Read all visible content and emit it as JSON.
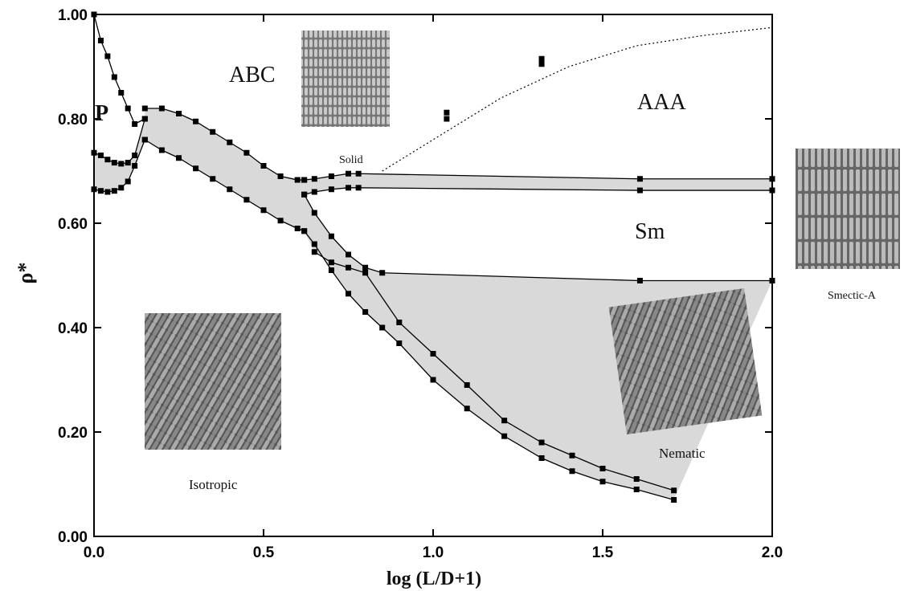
{
  "chart_data": {
    "type": "line",
    "x_label": "log (L/D+1)",
    "y_label": "ρ*",
    "xlim": [
      0,
      2.0
    ],
    "ylim": [
      0,
      1.0
    ],
    "xticks": [
      {
        "value": 0,
        "label": "0.0"
      },
      {
        "value": 0.5,
        "label": "0.5"
      },
      {
        "value": 1.0,
        "label": "1.0"
      },
      {
        "value": 1.5,
        "label": "1.5"
      },
      {
        "value": 2.0,
        "label": "2.0"
      }
    ],
    "yticks": [
      {
        "value": 0,
        "label": "0.00"
      },
      {
        "value": 0.2,
        "label": "0.20"
      },
      {
        "value": 0.4,
        "label": "0.40"
      },
      {
        "value": 0.6,
        "label": "0.60"
      },
      {
        "value": 0.8,
        "label": "0.80"
      },
      {
        "value": 1.0,
        "label": "1.00"
      }
    ],
    "annotations": [
      "P",
      "ABC",
      "AAA",
      "Sm",
      "Solid",
      "Isotropic",
      "Nematic",
      "Smectic-A"
    ],
    "color": "#000000",
    "shade_color": "#d9d9d9",
    "shaded_between": [
      [
        0,
        1
      ],
      [
        3,
        4
      ],
      [
        5,
        6
      ],
      [
        7,
        8
      ],
      [
        8,
        9
      ]
    ],
    "series": [
      {
        "style": "line+markers",
        "x": [
          0,
          0.02,
          0.04,
          0.06,
          0.08,
          0.1,
          0.12,
          0.15
        ],
        "values": [
          0.665,
          0.662,
          0.66,
          0.662,
          0.668,
          0.68,
          0.71,
          0.76
        ]
      },
      {
        "style": "line+markers",
        "x": [
          0,
          0.02,
          0.04,
          0.06,
          0.08,
          0.1,
          0.12,
          0.15
        ],
        "values": [
          0.735,
          0.73,
          0.722,
          0.716,
          0.714,
          0.716,
          0.73,
          0.8
        ]
      },
      {
        "style": "line+markers",
        "x": [
          0,
          0.02,
          0.04,
          0.06,
          0.08,
          0.1,
          0.12,
          0.15
        ],
        "values": [
          1.0,
          0.95,
          0.92,
          0.88,
          0.85,
          0.82,
          0.79,
          0.8
        ]
      },
      {
        "style": "line+markers",
        "x": [
          0.15,
          0.2,
          0.25,
          0.3,
          0.35,
          0.4,
          0.45,
          0.5,
          0.55,
          0.6,
          0.62
        ],
        "values": [
          0.82,
          0.82,
          0.81,
          0.795,
          0.775,
          0.755,
          0.735,
          0.71,
          0.69,
          0.683,
          0.683
        ]
      },
      {
        "style": "line+markers",
        "x": [
          0.15,
          0.2,
          0.25,
          0.3,
          0.35,
          0.4,
          0.45,
          0.5,
          0.55,
          0.6,
          0.62
        ],
        "values": [
          0.76,
          0.74,
          0.725,
          0.705,
          0.685,
          0.665,
          0.645,
          0.625,
          0.605,
          0.59,
          0.585
        ]
      },
      {
        "style": "line+markers",
        "x": [
          0.62,
          0.65,
          0.7,
          0.75,
          0.78,
          1.61,
          2.0
        ],
        "values": [
          0.683,
          0.685,
          0.69,
          0.695,
          0.695,
          0.685,
          0.685
        ]
      },
      {
        "style": "line+markers",
        "x": [
          0.62,
          0.65,
          0.7,
          0.75,
          0.78,
          1.61,
          2.0
        ],
        "values": [
          0.655,
          0.66,
          0.665,
          0.668,
          0.668,
          0.663,
          0.663
        ]
      },
      {
        "style": "line+markers",
        "x": [
          0.62,
          0.65,
          0.7,
          0.75,
          0.8,
          0.85,
          1.61,
          2.0
        ],
        "values": [
          0.655,
          0.62,
          0.575,
          0.54,
          0.515,
          0.505,
          0.49,
          0.49
        ]
      },
      {
        "style": "line+markers",
        "x": [
          0.62,
          0.65,
          0.7,
          0.75,
          0.8,
          0.85,
          0.9,
          1.0,
          1.1,
          1.21,
          1.32,
          1.41,
          1.5,
          1.6,
          1.71
        ],
        "values": [
          0.585,
          0.56,
          0.51,
          0.465,
          0.43,
          0.4,
          0.37,
          0.3,
          0.245,
          0.192,
          0.15,
          0.125,
          0.105,
          0.09,
          0.07
        ]
      },
      {
        "style": "line+markers",
        "x": [
          0.65,
          0.7,
          0.75,
          0.8,
          0.9,
          1.0,
          1.1,
          1.21,
          1.32,
          1.41,
          1.5,
          1.6,
          1.71
        ],
        "values": [
          0.545,
          0.525,
          0.515,
          0.505,
          0.41,
          0.35,
          0.29,
          0.222,
          0.18,
          0.155,
          0.13,
          0.11,
          0.088
        ]
      },
      {
        "style": "dotted",
        "x": [
          0.85,
          1.0,
          1.2,
          1.4,
          1.6,
          1.8,
          2.0
        ],
        "values": [
          0.7,
          0.76,
          0.84,
          0.9,
          0.94,
          0.96,
          0.975
        ]
      },
      {
        "style": "markers",
        "x": [
          1.04,
          1.04,
          1.32,
          1.32
        ],
        "values": [
          0.8,
          0.812,
          0.905,
          0.915
        ]
      }
    ]
  }
}
